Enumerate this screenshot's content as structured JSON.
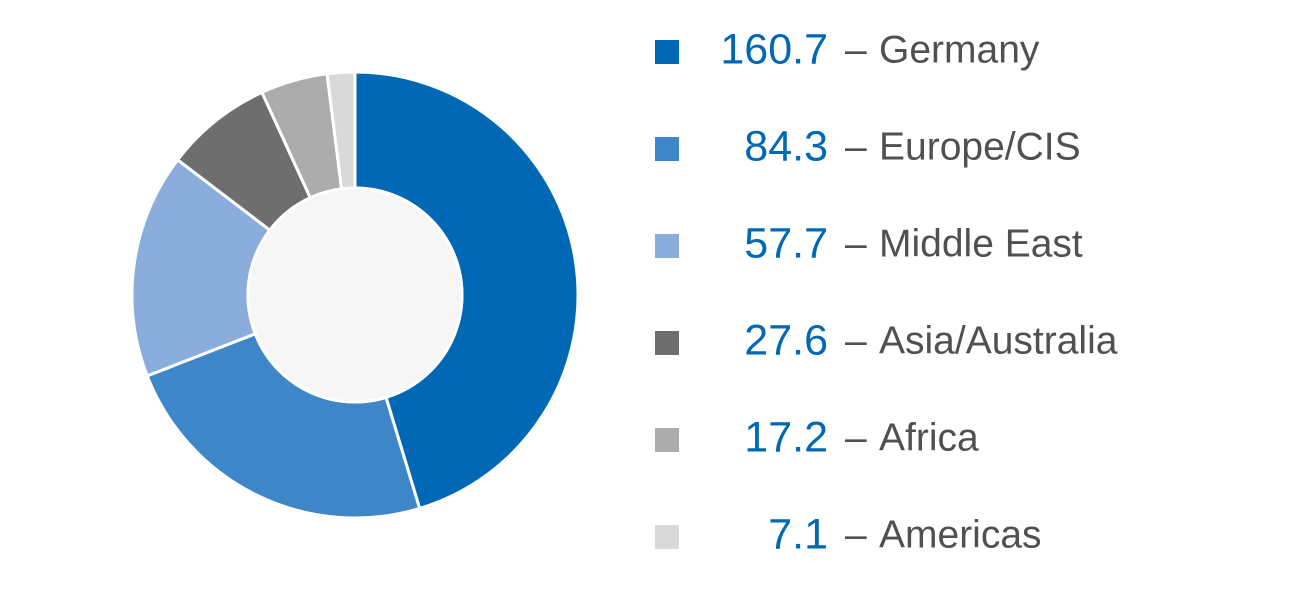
{
  "chart_data": {
    "type": "donut",
    "categories": [
      "Germany",
      "Europe/CIS",
      "Middle East",
      "Asia/Australia",
      "Africa",
      "Americas"
    ],
    "values": [
      160.7,
      84.3,
      57.7,
      27.6,
      17.2,
      7.1
    ],
    "colors": [
      "#0068b4",
      "#3d87c8",
      "#8aaddc",
      "#6e6e6e",
      "#acacac",
      "#d9d9d9"
    ],
    "separator": "–"
  }
}
